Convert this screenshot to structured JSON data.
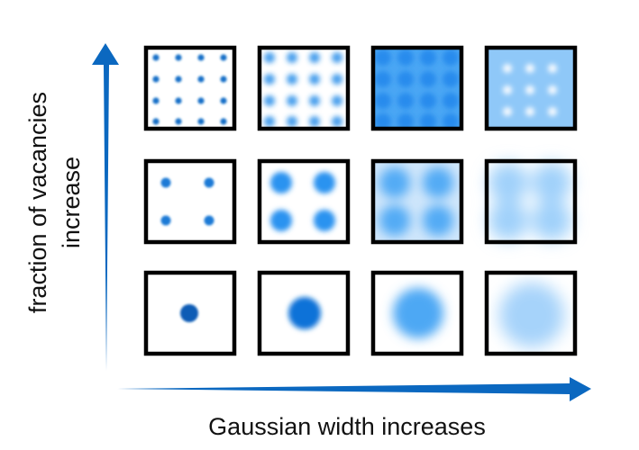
{
  "x_axis": {
    "label": "Gaussian width increases"
  },
  "y_axis": {
    "label_line1": "fraction of vacancies",
    "label_line2": "increase"
  },
  "colors": {
    "arrow": "#0b68c0",
    "frame": "#000000",
    "blob": "#1e8ef0",
    "blob_dark": "#0a5ab6"
  },
  "grid": {
    "rows": [
      {
        "name": "top",
        "gaussians_per_side": 4
      },
      {
        "name": "middle",
        "gaussians_per_side": 2
      },
      {
        "name": "bottom",
        "gaussians_per_side": 1
      }
    ],
    "columns": [
      {
        "name": "width-1",
        "relative_width": 1
      },
      {
        "name": "width-2",
        "relative_width": 2
      },
      {
        "name": "width-3",
        "relative_width": 3
      },
      {
        "name": "width-4",
        "relative_width": 4
      }
    ]
  }
}
